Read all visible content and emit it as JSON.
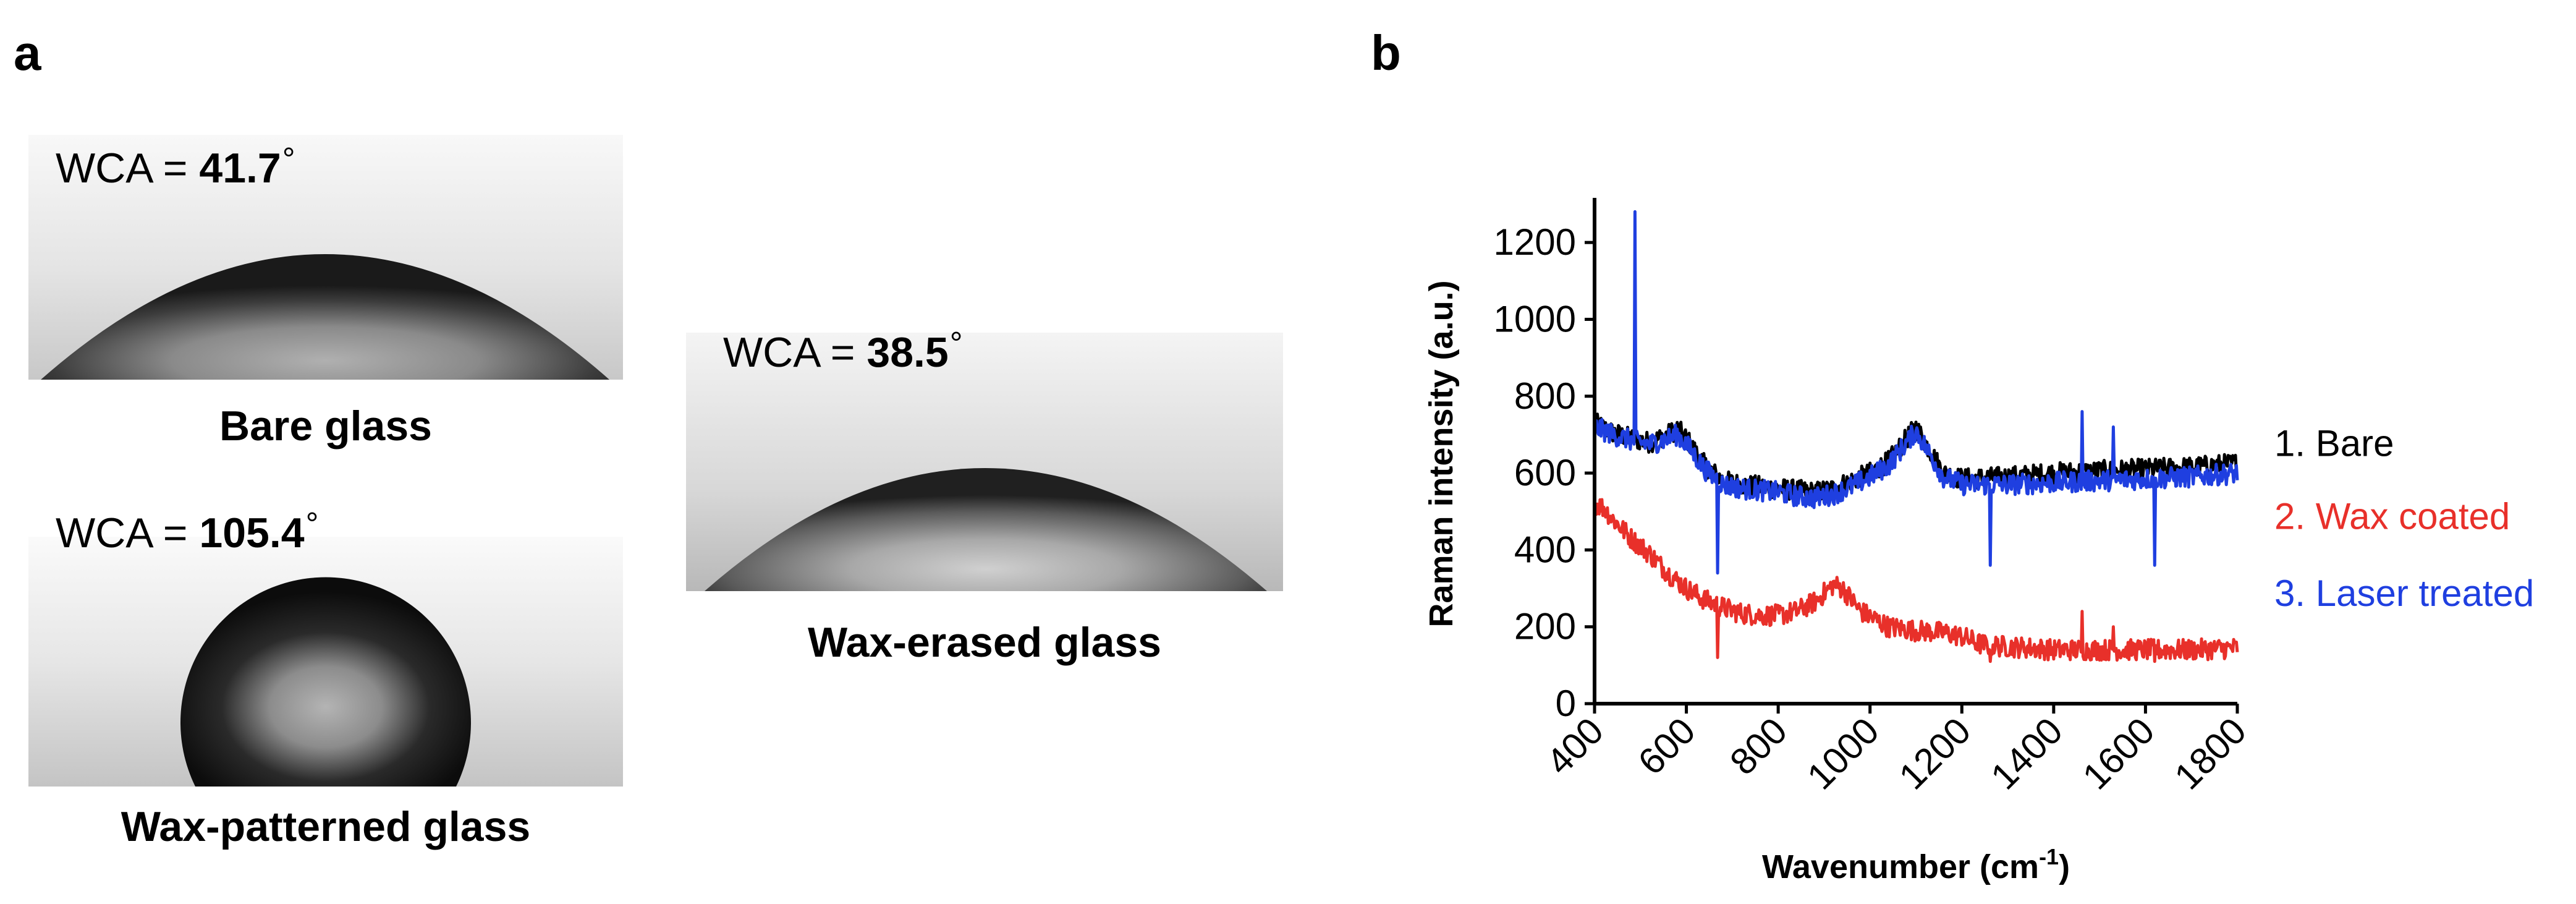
{
  "panel_a": {
    "letter": "a",
    "images": [
      {
        "id": "bare",
        "wca_prefix": "WCA = ",
        "wca_value": "41.7",
        "degree": "°",
        "caption": "Bare glass"
      },
      {
        "id": "wax_patterned",
        "wca_prefix": "WCA = ",
        "wca_value": "105.4",
        "degree": "°",
        "caption": "Wax-patterned glass"
      },
      {
        "id": "wax_erased",
        "wca_prefix": "WCA = ",
        "wca_value": "38.5",
        "degree": "°",
        "caption": "Wax-erased glass"
      }
    ]
  },
  "panel_b": {
    "letter": "b"
  },
  "chart_data": {
    "type": "line",
    "title": "",
    "xlabel": "Wavenumber (cm",
    "xlabel_sup": "-1",
    "xlabel_suffix": ")",
    "ylabel": "Raman intensity (a.u.)",
    "xlim": [
      400,
      1800
    ],
    "ylim": [
      0,
      1300
    ],
    "xticks": [
      400,
      600,
      800,
      1000,
      1200,
      1400,
      1600,
      1800
    ],
    "yticks": [
      0,
      200,
      400,
      600,
      800,
      1000,
      1200
    ],
    "legend_position": "right",
    "series": [
      {
        "name": "1. Bare",
        "color": "#000000",
        "points": [
          [
            400,
            730
          ],
          [
            440,
            705
          ],
          [
            480,
            690
          ],
          [
            520,
            680
          ],
          [
            560,
            700
          ],
          [
            580,
            715
          ],
          [
            600,
            690
          ],
          [
            640,
            620
          ],
          [
            680,
            580
          ],
          [
            720,
            570
          ],
          [
            760,
            565
          ],
          [
            800,
            560
          ],
          [
            840,
            555
          ],
          [
            880,
            550
          ],
          [
            920,
            560
          ],
          [
            960,
            580
          ],
          [
            1000,
            600
          ],
          [
            1040,
            630
          ],
          [
            1080,
            690
          ],
          [
            1100,
            720
          ],
          [
            1120,
            680
          ],
          [
            1160,
            600
          ],
          [
            1200,
            585
          ],
          [
            1300,
            590
          ],
          [
            1400,
            600
          ],
          [
            1500,
            605
          ],
          [
            1600,
            610
          ],
          [
            1700,
            615
          ],
          [
            1800,
            625
          ]
        ],
        "spikes": []
      },
      {
        "name": "2. Wax coated",
        "color": "#e8302a",
        "points": [
          [
            400,
            520
          ],
          [
            420,
            510
          ],
          [
            440,
            480
          ],
          [
            480,
            430
          ],
          [
            520,
            390
          ],
          [
            560,
            340
          ],
          [
            600,
            300
          ],
          [
            640,
            270
          ],
          [
            680,
            250
          ],
          [
            720,
            235
          ],
          [
            760,
            230
          ],
          [
            800,
            230
          ],
          [
            840,
            240
          ],
          [
            880,
            265
          ],
          [
            920,
            310
          ],
          [
            940,
            300
          ],
          [
            980,
            240
          ],
          [
            1040,
            200
          ],
          [
            1100,
            190
          ],
          [
            1160,
            185
          ],
          [
            1200,
            175
          ],
          [
            1240,
            155
          ],
          [
            1280,
            150
          ],
          [
            1350,
            145
          ],
          [
            1400,
            140
          ],
          [
            1500,
            140
          ],
          [
            1600,
            140
          ],
          [
            1700,
            140
          ],
          [
            1800,
            145
          ]
        ],
        "spikes": [
          [
            668,
            120
          ],
          [
            1262,
            110
          ],
          [
            1462,
            240
          ],
          [
            1530,
            200
          ],
          [
            1620,
            110
          ]
        ]
      },
      {
        "name": "3. Laser treated",
        "color": "#1f3fe0",
        "points": [
          [
            400,
            720
          ],
          [
            440,
            700
          ],
          [
            480,
            685
          ],
          [
            520,
            675
          ],
          [
            560,
            690
          ],
          [
            580,
            700
          ],
          [
            600,
            675
          ],
          [
            640,
            610
          ],
          [
            680,
            570
          ],
          [
            720,
            560
          ],
          [
            760,
            555
          ],
          [
            800,
            550
          ],
          [
            840,
            540
          ],
          [
            880,
            535
          ],
          [
            920,
            545
          ],
          [
            960,
            565
          ],
          [
            1000,
            590
          ],
          [
            1040,
            620
          ],
          [
            1080,
            680
          ],
          [
            1100,
            710
          ],
          [
            1120,
            670
          ],
          [
            1160,
            590
          ],
          [
            1200,
            570
          ],
          [
            1300,
            570
          ],
          [
            1400,
            575
          ],
          [
            1500,
            580
          ],
          [
            1600,
            585
          ],
          [
            1700,
            590
          ],
          [
            1800,
            600
          ]
        ],
        "spikes": [
          [
            488,
            1280
          ],
          [
            668,
            340
          ],
          [
            1262,
            360
          ],
          [
            1462,
            760
          ],
          [
            1530,
            720
          ],
          [
            1620,
            360
          ]
        ]
      }
    ]
  }
}
